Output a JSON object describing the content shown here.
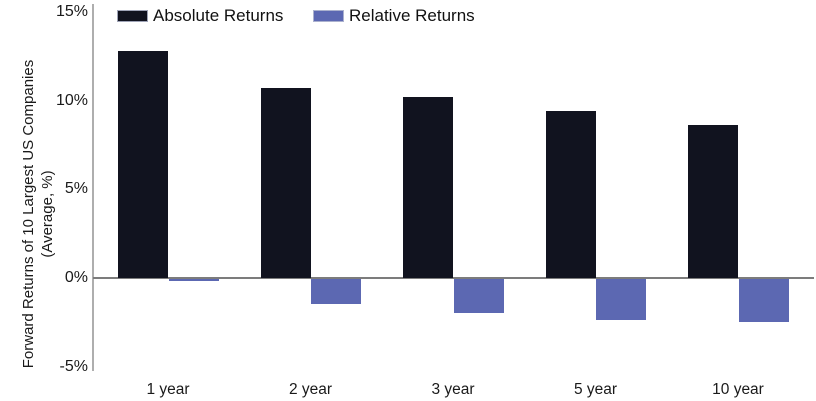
{
  "chart_data": {
    "type": "bar",
    "title": "",
    "ylabel_line1": "Forward Returns of 10 Largest US Companies",
    "ylabel_line2": "(Average, %)",
    "xlabel": "",
    "categories": [
      "1 year",
      "2 year",
      "3 year",
      "5 year",
      "10 year"
    ],
    "series": [
      {
        "name": "Absolute Returns",
        "values": [
          12.8,
          10.7,
          10.2,
          9.4,
          8.6
        ],
        "color": "#11131f"
      },
      {
        "name": "Relative Returns",
        "values": [
          -0.1,
          -1.4,
          -1.9,
          -2.3,
          -2.4
        ],
        "color": "#5c68b2"
      }
    ],
    "y_ticks": [
      "15%",
      "10%",
      "5%",
      "0%",
      "-5%"
    ],
    "y_tick_values": [
      15,
      10,
      5,
      0,
      -5
    ],
    "ylim": [
      -5,
      15
    ],
    "grid": "off",
    "legend_position": "top"
  },
  "colors": {
    "axis_line": "#aeaeae",
    "zero_line": "#7c7c7c",
    "text": "#1a1a1a",
    "background": "#ffffff"
  }
}
